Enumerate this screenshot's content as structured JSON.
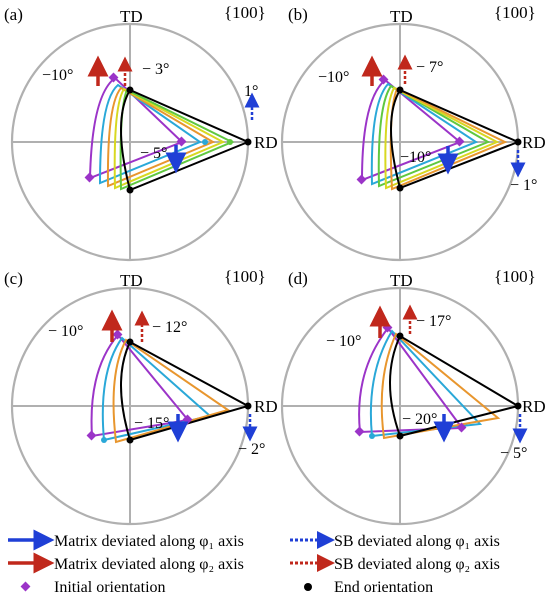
{
  "panels": [
    {
      "tag": "(a)",
      "td": "TD",
      "rd": "RD",
      "plane": "{100}",
      "angles": {
        "m_phi2": "−10°",
        "sb_phi2": "− 3°",
        "m_phi1": "− 5°",
        "sb_phi1": "1°"
      }
    },
    {
      "tag": "(b)",
      "td": "TD",
      "rd": "RD",
      "plane": "{100}",
      "angles": {
        "m_phi2": "−10°",
        "sb_phi2": "− 7°",
        "m_phi1": "−10°",
        "sb_phi1": "− 1°"
      }
    },
    {
      "tag": "(c)",
      "td": "TD",
      "rd": "RD",
      "plane": "{100}",
      "angles": {
        "m_phi2": "− 10°",
        "sb_phi2": "− 12°",
        "m_phi1": "− 15°",
        "sb_phi1": "− 2°"
      }
    },
    {
      "tag": "(d)",
      "td": "TD",
      "rd": "RD",
      "plane": "{100}",
      "angles": {
        "m_phi2": "− 10°",
        "sb_phi2": "− 17°",
        "m_phi1": "− 20°",
        "sb_phi1": "− 5°"
      }
    }
  ],
  "legend": {
    "matrix_phi1": "Matrix deviated along φ₁ axis",
    "matrix_phi2": "Matrix deviated along φ₂ axis",
    "sb_phi1": "SB deviated along φ₁ axis",
    "sb_phi2": "SB deviated along φ₂ axis",
    "initial": "Initial orientation",
    "end": "End orientation"
  },
  "colors": {
    "circle": "#b0b0b0",
    "matrix_phi1": "#1f3fd6",
    "matrix_phi2": "#c0281c",
    "sb_phi1": "#1f3fd6",
    "sb_phi2": "#c0281c",
    "initial_marker": "#9b34c8",
    "end_marker": "#000000",
    "curves_a": [
      "#9b34c8",
      "#2aa8d8",
      "#e8962e",
      "#d8d820",
      "#60c840",
      "#000000"
    ],
    "curves_b": [
      "#9b34c8",
      "#2aa8d8",
      "#60c840",
      "#d8d820",
      "#e8962e",
      "#000000"
    ],
    "curves_c": [
      "#9b34c8",
      "#2aa8d8",
      "#e8962e",
      "#000000"
    ],
    "curves_d": [
      "#9b34c8",
      "#2aa8d8",
      "#e8962e",
      "#000000"
    ]
  }
}
